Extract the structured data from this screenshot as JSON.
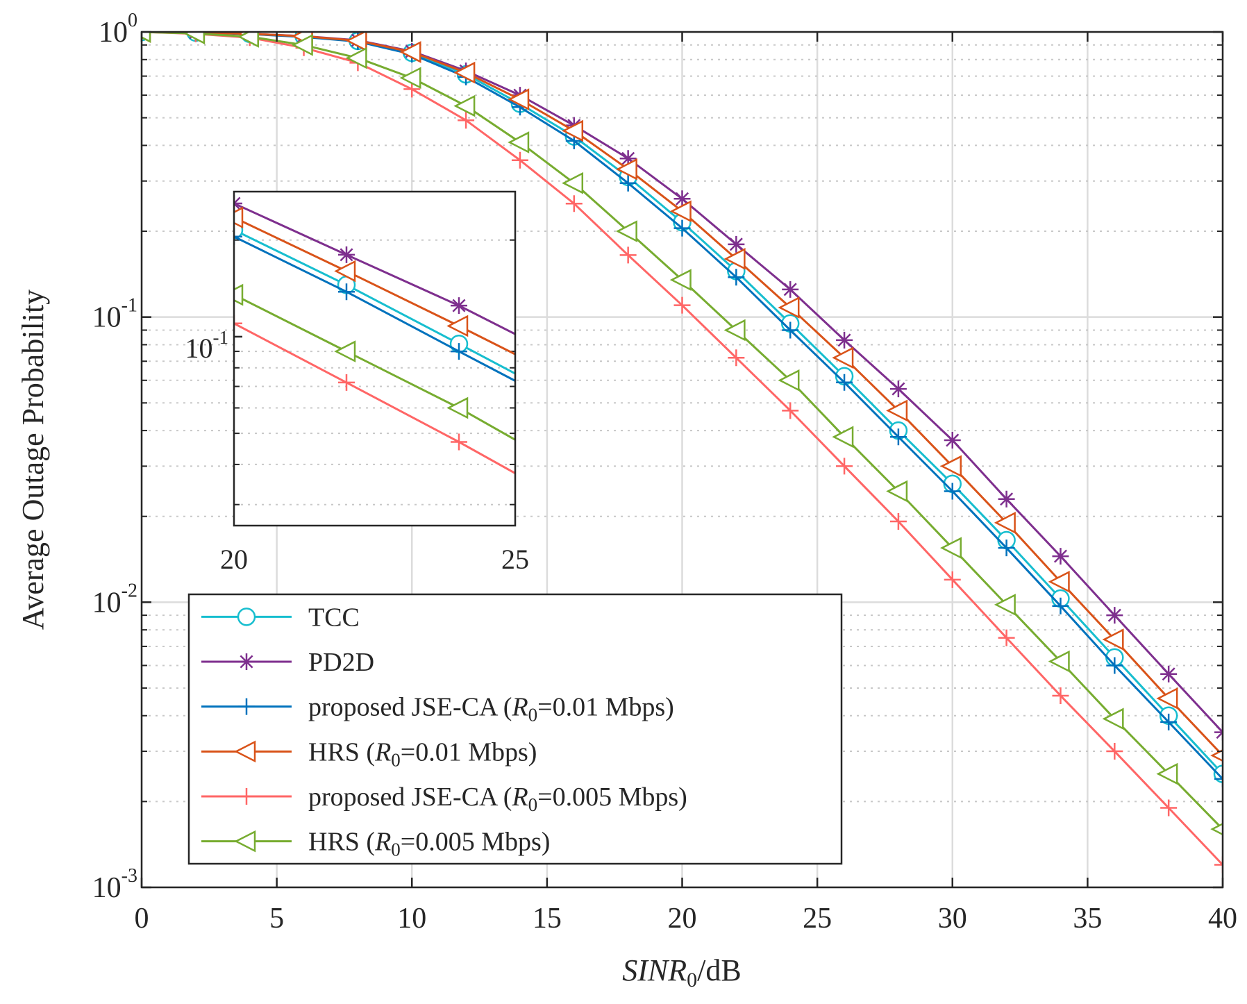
{
  "chart_data": {
    "type": "line",
    "title": "",
    "xlabel": "SINR",
    "xlabel_sub": "0",
    "xlabel_unit": "/dB",
    "ylabel": "Average Outage Probability",
    "yscale": "log",
    "xlim": [
      0,
      40
    ],
    "ylim": [
      0.001,
      1
    ],
    "grid": true,
    "legend_position": "bottom-left",
    "x": [
      0,
      2,
      4,
      6,
      8,
      10,
      12,
      14,
      16,
      18,
      20,
      22,
      24,
      26,
      28,
      30,
      32,
      34,
      36,
      38,
      40
    ],
    "x_ticks": [
      {
        "value": 0,
        "label": "0"
      },
      {
        "value": 5,
        "label": "5"
      },
      {
        "value": 10,
        "label": "10"
      },
      {
        "value": 15,
        "label": "15"
      },
      {
        "value": 20,
        "label": "20"
      },
      {
        "value": 25,
        "label": "25"
      },
      {
        "value": 30,
        "label": "30"
      },
      {
        "value": 35,
        "label": "35"
      },
      {
        "value": 40,
        "label": "40"
      }
    ],
    "y_ticks": [
      {
        "value": 1,
        "base": "10",
        "exp": "0"
      },
      {
        "value": 0.1,
        "base": "10",
        "exp": "-1"
      },
      {
        "value": 0.01,
        "base": "10",
        "exp": "-2"
      },
      {
        "value": 0.001,
        "base": "10",
        "exp": "-3"
      }
    ],
    "series": [
      {
        "name": "TCC",
        "label_parts": [
          "TCC"
        ],
        "color": "#17BECF",
        "marker": "circle",
        "values": [
          1.0,
          0.995,
          0.985,
          0.965,
          0.93,
          0.845,
          0.71,
          0.56,
          0.43,
          0.31,
          0.215,
          0.145,
          0.095,
          0.062,
          0.04,
          0.026,
          0.0165,
          0.0103,
          0.0064,
          0.004,
          0.0025
        ]
      },
      {
        "name": "PD2D",
        "label_parts": [
          "PD2D"
        ],
        "color": "#7E2F8E",
        "marker": "star",
        "values": [
          1.0,
          0.995,
          0.985,
          0.967,
          0.935,
          0.855,
          0.73,
          0.6,
          0.47,
          0.36,
          0.26,
          0.18,
          0.125,
          0.083,
          0.056,
          0.037,
          0.023,
          0.0145,
          0.009,
          0.0056,
          0.0035
        ]
      },
      {
        "name": "proposed JSE-CA (R0=0.01 Mbps)",
        "label_parts": [
          "proposed JSE-CA (",
          "R",
          "0",
          "=0.01 Mbps)"
        ],
        "color": "#0072BD",
        "marker": "plus",
        "values": [
          1.0,
          0.995,
          0.983,
          0.96,
          0.925,
          0.835,
          0.695,
          0.545,
          0.415,
          0.295,
          0.205,
          0.138,
          0.09,
          0.059,
          0.038,
          0.0245,
          0.0155,
          0.0097,
          0.006,
          0.0038,
          0.0024
        ]
      },
      {
        "name": "HRS (R0=0.01 Mbps)",
        "label_parts": [
          "HRS (",
          "R",
          "0",
          "=0.01 Mbps)"
        ],
        "color": "#D95319",
        "marker": "triangle-left",
        "values": [
          1.0,
          0.995,
          0.985,
          0.966,
          0.932,
          0.85,
          0.72,
          0.58,
          0.45,
          0.33,
          0.235,
          0.16,
          0.108,
          0.072,
          0.047,
          0.03,
          0.019,
          0.0118,
          0.0074,
          0.0046,
          0.0029
        ]
      },
      {
        "name": "proposed JSE-CA (R0=0.005 Mbps)",
        "label_parts": [
          "proposed JSE-CA (",
          "R",
          "0",
          "=0.005 Mbps)"
        ],
        "color": "#FF6666",
        "marker": "plus",
        "values": [
          1.0,
          0.985,
          0.955,
          0.88,
          0.78,
          0.63,
          0.49,
          0.355,
          0.25,
          0.165,
          0.11,
          0.072,
          0.047,
          0.03,
          0.0192,
          0.012,
          0.0075,
          0.0047,
          0.003,
          0.0019,
          0.0012
        ]
      },
      {
        "name": "HRS (R0=0.005 Mbps)",
        "label_parts": [
          "HRS (",
          "R",
          "0",
          "=0.005 Mbps)"
        ],
        "color": "#77AC30",
        "marker": "triangle-left",
        "values": [
          1.0,
          0.988,
          0.962,
          0.9,
          0.81,
          0.69,
          0.55,
          0.41,
          0.295,
          0.2,
          0.135,
          0.09,
          0.06,
          0.038,
          0.0245,
          0.0155,
          0.0098,
          0.0062,
          0.0039,
          0.0025,
          0.0016
        ]
      }
    ],
    "inset": {
      "xlim": [
        20,
        25
      ],
      "ylim": [
        0.0258,
        0.283
      ],
      "x_ticks": [
        {
          "value": 20,
          "label": "20"
        },
        {
          "value": 25,
          "label": "25"
        }
      ],
      "y_ticks": [
        {
          "value": 0.1,
          "base": "10",
          "exp": "-1"
        }
      ]
    }
  }
}
